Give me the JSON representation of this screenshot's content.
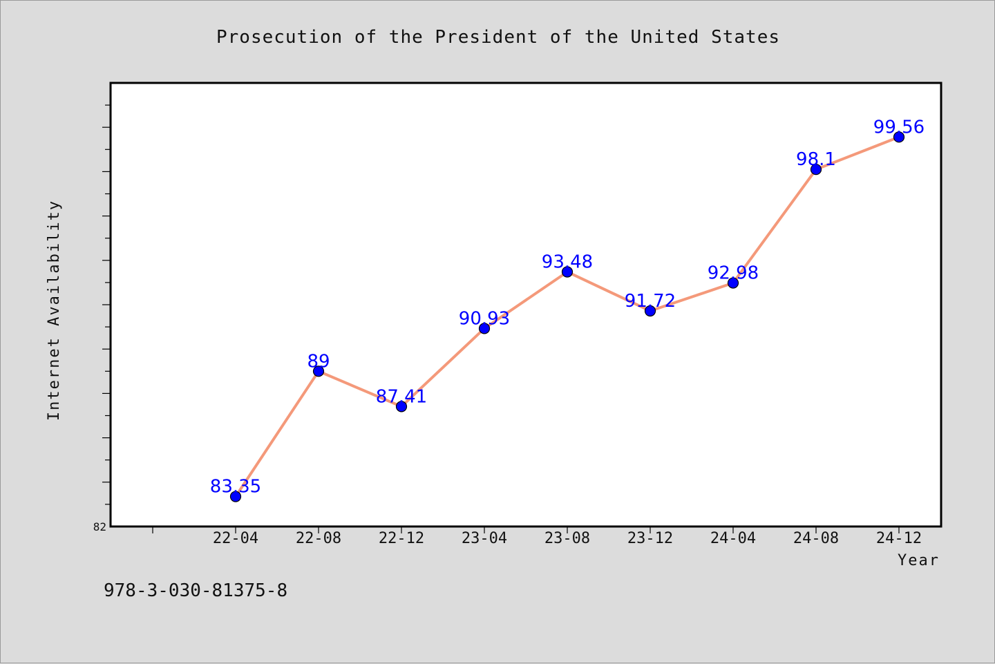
{
  "chart_data": {
    "type": "line",
    "title": "Prosecution of the President of the United States",
    "xlabel": "Year",
    "ylabel": "Internet Availability",
    "categories": [
      "22-04",
      "22-08",
      "22-12",
      "23-04",
      "23-08",
      "23-12",
      "24-04",
      "24-08",
      "24-12"
    ],
    "series": [
      {
        "values": [
          83.35,
          89,
          87.41,
          90.93,
          93.48,
          91.72,
          92.98,
          98.1,
          99.56
        ],
        "labels": [
          "83.35",
          "89",
          "87.41",
          "90.93",
          "93.48",
          "91.72",
          "92.98",
          "98.1",
          "99.56"
        ]
      }
    ],
    "ylim": [
      82,
      102
    ],
    "ytick_labels": [
      "82"
    ],
    "grid": false,
    "line_color": "#f4997a",
    "marker_color": "#0000ff",
    "label_color": "#0000ff"
  },
  "footer": {
    "isbn": "978-3-030-81375-8"
  }
}
